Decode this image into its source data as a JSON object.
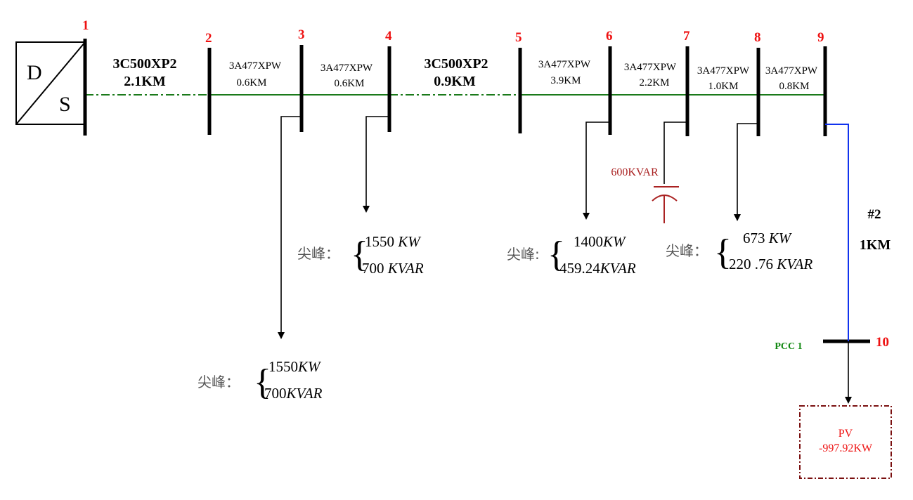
{
  "colors": {
    "bus_number": "#ee1111",
    "feeder_line": "#1a7a1a",
    "pv_line": "#1133ee",
    "capacitor": "#aa2222",
    "pcc_label": "#118811",
    "pv_box": "#7a1010",
    "pv_text": "#ee1111",
    "wire": "#000000"
  },
  "source": {
    "top_letter": "D",
    "bottom_letter": "S"
  },
  "buses": [
    "1",
    "2",
    "3",
    "4",
    "5",
    "6",
    "7",
    "8",
    "9",
    "10"
  ],
  "segments": {
    "s1": {
      "conductor": "3C500XP2",
      "length": "2.1KM"
    },
    "s2": {
      "conductor": "3A477XPW",
      "length": "0.6KM"
    },
    "s3": {
      "conductor": "3A477XPW",
      "length": "0.6KM"
    },
    "s4": {
      "conductor": "3C500XP2",
      "length": "0.9KM"
    },
    "s5": {
      "conductor": "3A477XPW",
      "length": "3.9KM"
    },
    "s6": {
      "conductor": "3A477XPW",
      "length": "2.2KM"
    },
    "s7": {
      "conductor": "3A477XPW",
      "length": "1.0KM"
    },
    "s8": {
      "conductor": "3A477XPW",
      "length": "0.8KM"
    }
  },
  "branch": {
    "label": "#2",
    "length": "1KM"
  },
  "capacitor": {
    "rating": "600KVAR"
  },
  "pcc": {
    "label": "PCC 1"
  },
  "pv": {
    "name": "PV",
    "power": "-997.92KW"
  },
  "loads": {
    "bus3": {
      "label": "尖峰：",
      "p_value": "1550",
      "p_unit": "KW",
      "q_value": "700",
      "q_unit": "KVAR"
    },
    "bus4": {
      "label": "尖峰：",
      "p_value": "1550 ",
      "p_unit": "KW",
      "q_value": "700 ",
      "q_unit": "KVAR"
    },
    "bus6": {
      "label": "尖峰:",
      "p_value": "1400",
      "p_unit": "KW",
      "q_value": "459.24",
      "q_unit": "KVAR"
    },
    "bus8": {
      "label": "尖峰：",
      "p_value": "673 ",
      "p_unit": "KW",
      "q_value": "220 .76 ",
      "q_unit": "KVAR"
    }
  }
}
